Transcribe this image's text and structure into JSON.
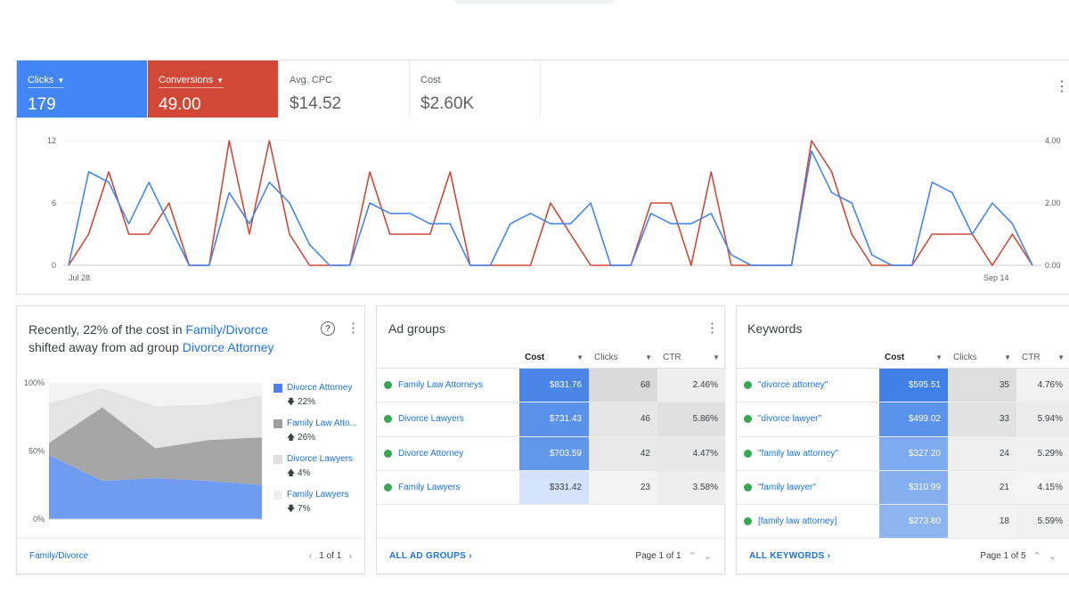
{
  "colors": {
    "clicks": "#4285f4",
    "conversions": "#d14836",
    "link": "#1a73e8",
    "status_enabled": "#34a853"
  },
  "overview": {
    "metrics": [
      {
        "label": "Clicks",
        "value": "179",
        "dropdown": true
      },
      {
        "label": "Conversions",
        "value": "49.00",
        "dropdown": true
      },
      {
        "label": "Avg. CPC",
        "value": "$14.52",
        "dropdown": false
      },
      {
        "label": "Cost",
        "value": "$2.60K",
        "dropdown": false
      }
    ],
    "more_icon": "more-vert-icon"
  },
  "chart_data": {
    "type": "line",
    "x_start_label": "Jul 28",
    "x_end_label": "Sep 14",
    "y_left_ticks": [
      "12",
      "6",
      "0"
    ],
    "y_right_ticks": [
      "4.00",
      "2.00",
      "0.00"
    ],
    "ylim_left": [
      0,
      12
    ],
    "ylim_right": [
      0,
      4
    ],
    "grid": true,
    "series": [
      {
        "name": "Clicks",
        "axis": "left",
        "color": "#4285f4",
        "values": [
          0,
          9,
          8,
          4,
          8,
          4,
          0,
          0,
          7,
          4,
          8,
          6,
          2,
          0,
          0,
          6,
          5,
          5,
          4,
          4,
          0,
          0,
          4,
          5,
          4,
          4,
          6,
          0,
          0,
          5,
          4,
          4,
          5,
          1,
          0,
          0,
          0,
          11,
          7,
          6,
          1,
          0,
          0,
          8,
          7,
          3,
          6,
          4,
          0
        ]
      },
      {
        "name": "Conversions",
        "axis": "right",
        "color": "#d14836",
        "values": [
          0,
          1,
          3,
          1,
          1,
          2,
          0,
          0,
          4,
          1,
          4,
          1,
          0,
          0,
          0,
          3,
          1,
          1,
          1,
          3,
          0,
          0,
          0,
          0,
          2,
          1,
          0,
          0,
          0,
          2,
          2,
          0,
          3,
          0,
          0,
          0,
          0,
          4,
          3,
          1,
          0,
          0,
          0,
          1,
          1,
          1,
          0,
          1,
          0
        ]
      }
    ]
  },
  "insight": {
    "title_prefix": "Recently, 22% of the cost in ",
    "title_link1": "Family/Divorce",
    "title_middle": " shifted away from ad group ",
    "title_link2": "Divorce Attorney",
    "help_glyph": "?",
    "footer_link": "Family/Divorce",
    "pager": "1 of 1"
  },
  "area_chart": {
    "type": "area",
    "y_ticks": [
      "100%",
      "50%",
      "0%"
    ],
    "series": [
      {
        "name": "Divorce Attorney",
        "color": "#6f9cf2",
        "top": [
          47,
          28,
          30,
          28,
          25
        ]
      },
      {
        "name": "Family Law Attorneys",
        "color": "#a6a6a6",
        "top": [
          56,
          82,
          52,
          58,
          60
        ]
      },
      {
        "name": "Divorce Lawyers",
        "color": "#e4e4e4",
        "top": [
          85,
          96,
          83,
          84,
          91
        ]
      },
      {
        "name": "Family Lawyers",
        "color": "#f3f3f3",
        "top": [
          100,
          100,
          100,
          100,
          100
        ]
      }
    ]
  },
  "legend": [
    {
      "name": "Divorce Attorney",
      "change": "22%",
      "direction": "down",
      "color": "#4a7fe8"
    },
    {
      "name": "Family Law Atto...",
      "change": "26%",
      "direction": "up",
      "color": "#9e9e9e"
    },
    {
      "name": "Divorce Lawyers",
      "change": "4%",
      "direction": "up",
      "color": "#dedede"
    },
    {
      "name": "Family Lawyers",
      "change": "7%",
      "direction": "down",
      "color": "#eeeeee"
    }
  ],
  "ad_groups": {
    "title": "Ad groups",
    "columns": [
      "Cost",
      "Clicks",
      "CTR"
    ],
    "rows": [
      {
        "name": "Family Law Attorneys",
        "cost": "$831.76",
        "clicks": "68",
        "ctr": "2.46%",
        "cost_bg": "#4a86e8",
        "clicks_bg": "#dadada",
        "ctr_bg": "#eeeeee"
      },
      {
        "name": "Divorce Lawyers",
        "cost": "$731.43",
        "clicks": "46",
        "ctr": "5.86%",
        "cost_bg": "#5a92eb",
        "clicks_bg": "#e6e6e6",
        "ctr_bg": "#e0e0e0"
      },
      {
        "name": "Divorce Attorney",
        "cost": "$703.59",
        "clicks": "42",
        "ctr": "4.47%",
        "cost_bg": "#6198ec",
        "clicks_bg": "#e9e9e9",
        "ctr_bg": "#e8e8e8"
      },
      {
        "name": "Family Lawyers",
        "cost": "$331.42",
        "clicks": "23",
        "ctr": "3.58%",
        "cost_bg": "#d4e3fb",
        "clicks_bg": "#f3f3f3",
        "ctr_bg": "#eeeeee"
      }
    ],
    "footer_link": "ALL AD GROUPS",
    "pager": "Page 1 of 1"
  },
  "keywords": {
    "title": "Keywords",
    "columns": [
      "Cost",
      "Clicks",
      "CTR"
    ],
    "rows": [
      {
        "name": "\"divorce attorney\"",
        "cost": "$595.51",
        "clicks": "35",
        "ctr": "4.76%",
        "cost_bg": "#3f7fe6",
        "clicks_bg": "#dedede",
        "ctr_bg": "#f2f2f2"
      },
      {
        "name": "\"divorce lawyer\"",
        "cost": "$499.02",
        "clicks": "33",
        "ctr": "5.94%",
        "cost_bg": "#5b93ec",
        "clicks_bg": "#e2e2e2",
        "ctr_bg": "#ececec"
      },
      {
        "name": "\"family law attorney\"",
        "cost": "$327.20",
        "clicks": "24",
        "ctr": "5.29%",
        "cost_bg": "#7eaaef",
        "clicks_bg": "#efefef",
        "ctr_bg": "#f1f1f1"
      },
      {
        "name": "\"family lawyer\"",
        "cost": "$310.99",
        "clicks": "21",
        "ctr": "4.15%",
        "cost_bg": "#86aff0",
        "clicks_bg": "#f2f2f2",
        "ctr_bg": "#f5f5f5"
      },
      {
        "name": "[family law attorney]",
        "cost": "$273.80",
        "clicks": "18",
        "ctr": "5.59%",
        "cost_bg": "#8fb5f1",
        "clicks_bg": "#f4f4f4",
        "ctr_bg": "#f0f0f0"
      }
    ],
    "footer_link": "ALL KEYWORDS",
    "pager": "Page 1 of 5"
  },
  "nav": {
    "prev_icon": "‹",
    "next_icon": "›",
    "up_icon": "⌃",
    "down_icon": "⌄",
    "link_arrow": "›"
  }
}
